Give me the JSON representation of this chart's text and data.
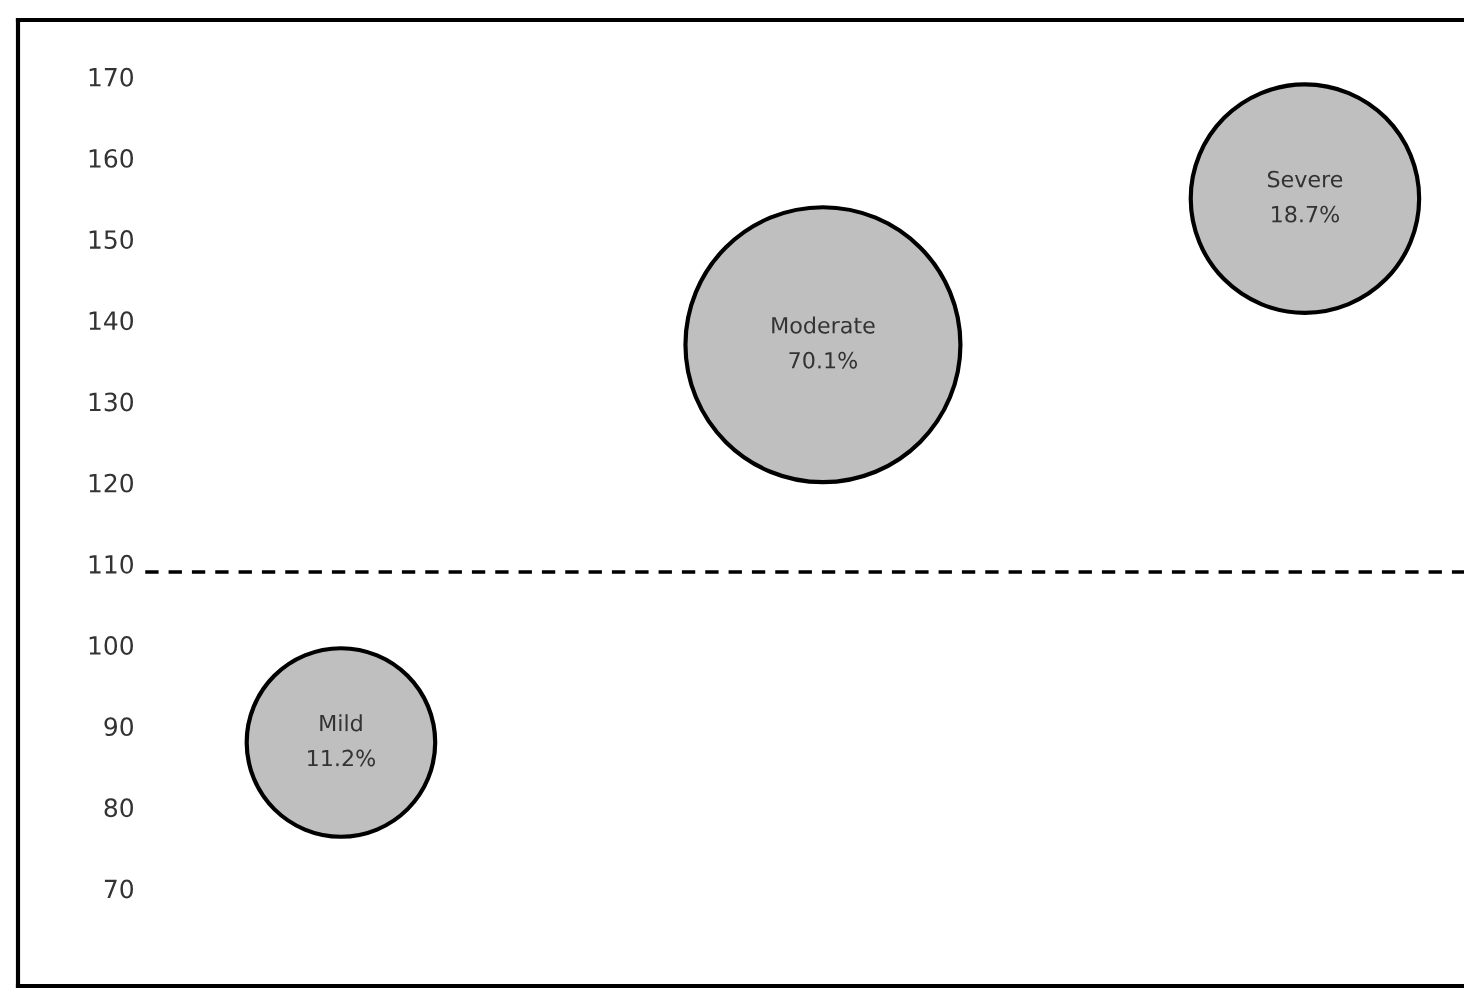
{
  "chart_data": {
    "type": "bubble",
    "categories": [
      null,
      null,
      null
    ],
    "series": [
      {
        "color": "#bfbfbf",
        "values": [
          88,
          137,
          155
        ],
        "sizes": [
          0.47,
          1,
          0.69
        ],
        "value_labels": [
          "Mild\n11.2%",
          "Moderate\n70.1%",
          "Severe\n18.7%"
        ]
      }
    ],
    "ylim": [
      58,
      177
    ],
    "yticks": [
      70,
      80,
      90,
      100,
      110,
      120,
      130,
      140,
      150,
      160,
      170
    ],
    "ref_lines": [
      {
        "axis": "y",
        "value": 109,
        "color": "#000000",
        "line_style": "dashed"
      }
    ],
    "tick_labels": "y",
    "grid": false,
    "legend": false,
    "marker": "circle"
  }
}
